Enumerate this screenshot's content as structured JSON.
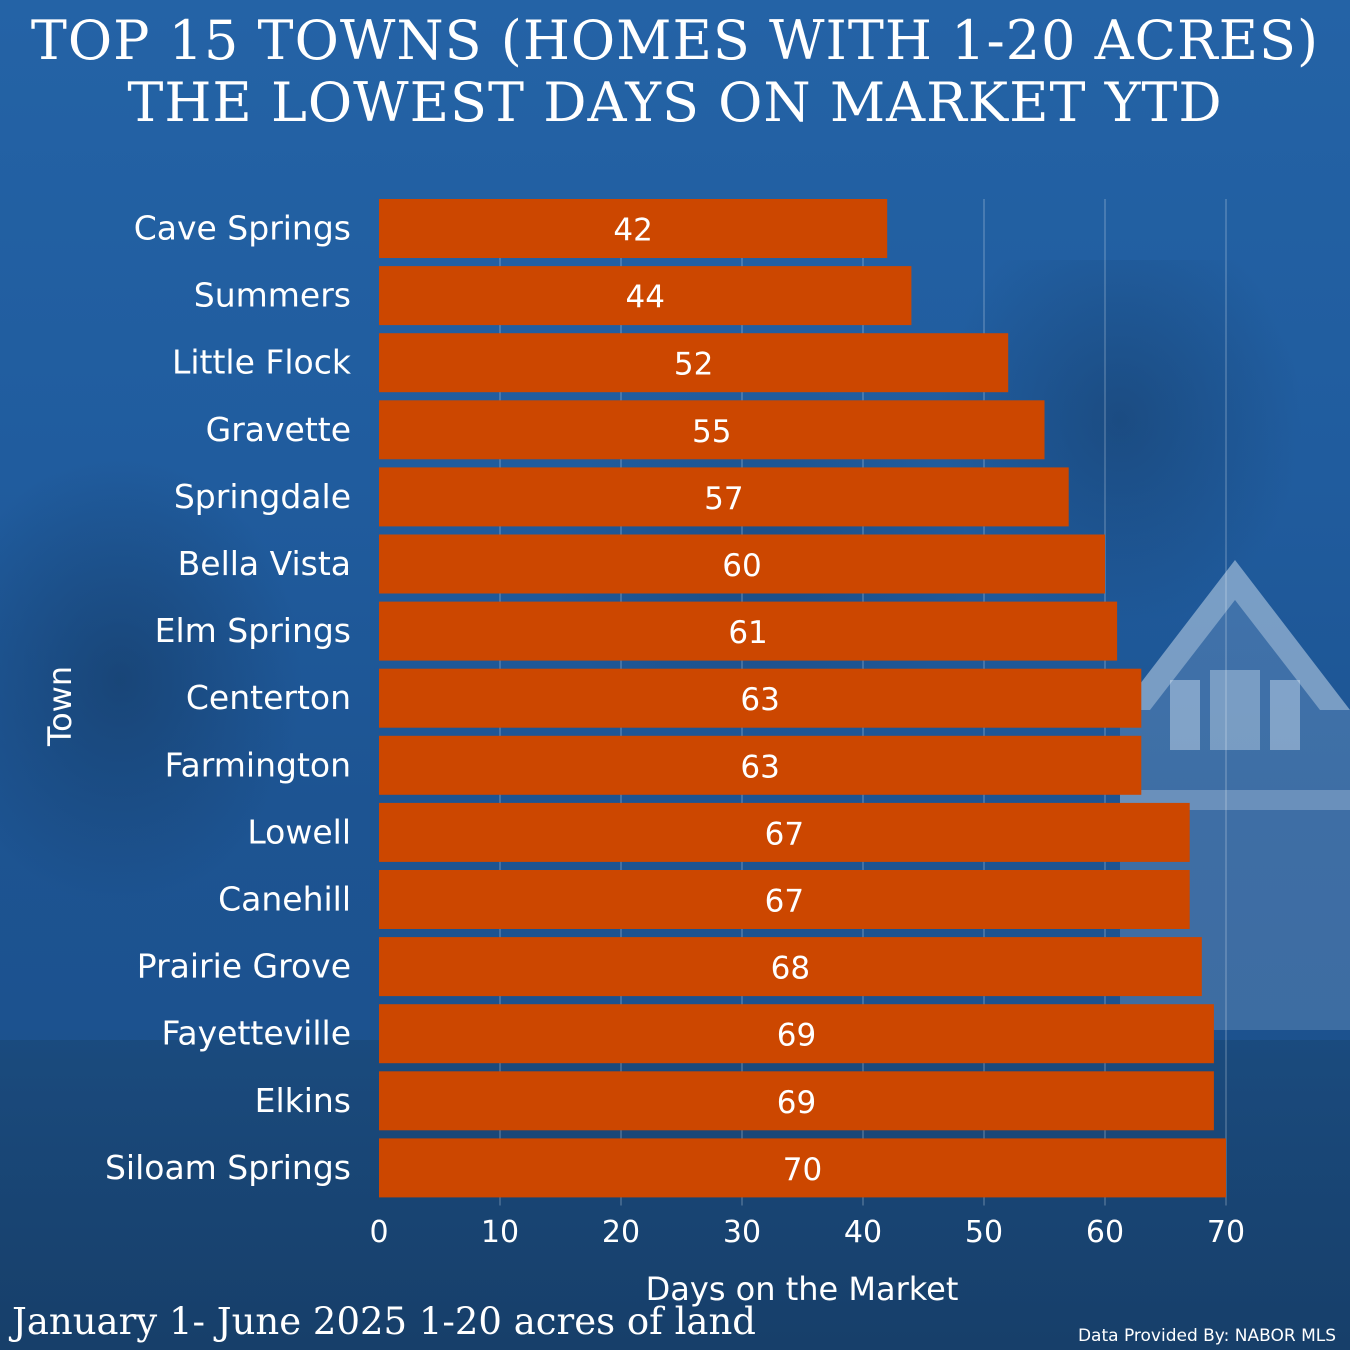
{
  "title_line1": "TOP 15 TOWNS (HOMES WITH 1-20 ACRES)",
  "title_line2": "THE LOWEST DAYS ON MARKET YTD",
  "footer_left": "January 1- June 2025 1-20 acres of land",
  "footer_right": "Data Provided By: NABOR MLS",
  "colors": {
    "bar": "#cc4700",
    "background": "#1f5a9a",
    "text": "#ffffff",
    "grid": "#ffffff"
  },
  "chart_data": {
    "type": "bar",
    "orientation": "horizontal",
    "categories": [
      "Cave Springs",
      "Summers",
      "Little Flock",
      "Gravette",
      "Springdale",
      "Bella Vista",
      "Elm Springs",
      "Centerton",
      "Farmington",
      "Lowell",
      "Canehill",
      "Prairie Grove",
      "Fayetteville",
      "Elkins",
      "Siloam Springs"
    ],
    "values": [
      42,
      44,
      52,
      55,
      57,
      60,
      61,
      63,
      63,
      67,
      67,
      68,
      69,
      69,
      70
    ],
    "xlabel": "Days on the Market",
    "ylabel": "Town",
    "xlim": [
      0,
      70
    ],
    "xticks": [
      0,
      10,
      20,
      30,
      40,
      50,
      60,
      70
    ],
    "grid": "vertical",
    "data_labels": true
  }
}
